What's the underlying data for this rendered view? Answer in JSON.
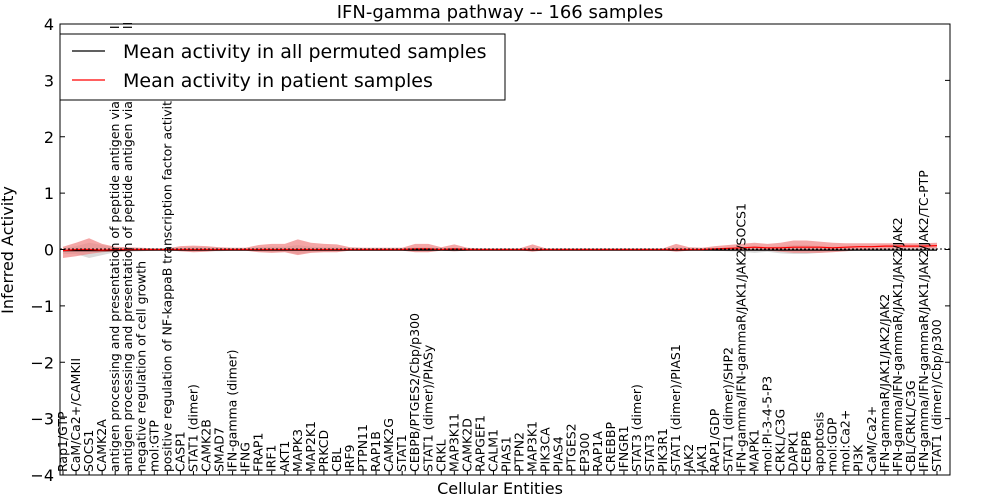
{
  "chart_data": {
    "type": "line",
    "title": "IFN-gamma pathway -- 166 samples",
    "xlabel": "Cellular Entities",
    "ylabel": "Inferred Activity",
    "ylim": [
      -4,
      4
    ],
    "yticks": [
      "4",
      "3",
      "2",
      "1",
      "0",
      "−1",
      "−2",
      "−3",
      "−4"
    ],
    "grid": false,
    "legend_position": "top-left",
    "categories": [
      "Rap1/GTP",
      "CaM/Ca2+/CAMKII",
      "SOCS1",
      "CAMK2A",
      "antigen processing and presentation of peptide antigen via MHC class I",
      "antigen processing and presentation of peptide antigen via MHC class II",
      "negative regulation of cell growth",
      "mol:GTP",
      "positive regulation of NF-kappaB transcription factor activity",
      "CASP1",
      "STAT1 (dimer)",
      "CAMK2B",
      "SMAD7",
      "IFN-gamma (dimer)",
      "IFNG",
      "FRAP1",
      "IRF1",
      "AKT1",
      "MAPK3",
      "MAP2K1",
      "PRKCD",
      "CBL",
      "IRF9",
      "PTPN11",
      "RAP1B",
      "CAMK2G",
      "STAT1",
      "CEBPB/PTGES2/Cbp/p300",
      "STAT1 (dimer)/PIASy",
      "CRKL",
      "MAP3K11",
      "CAMK2D",
      "RAPGEF1",
      "CALM1",
      "PIAS1",
      "PTPN2",
      "MAP3K1",
      "PIK3CA",
      "PIAS4",
      "PTGES2",
      "EP300",
      "RAP1A",
      "CREBBP",
      "IFNGR1",
      "STAT3 (dimer)",
      "STAT3",
      "PIK3R1",
      "STAT1 (dimer)/PIAS1",
      "JAK2",
      "JAK1",
      "RAP1/GDP",
      "STAT1 (dimer)/SHP2",
      "IFN-gamma/IFN-gammaR/JAK1/JAK2/SOCS1",
      "MAPK1",
      "mol:PI-3-4-5-P3",
      "CRKL/C3G",
      "DAPK1",
      "CEBPB",
      "apoptosis",
      "mol:GDP",
      "mol:Ca2+",
      "PI3K",
      "CaM/Ca2+",
      "IFN-gammaR/JAK1/JAK2/JAK2",
      "IFN-gamma/IFN-gammaR/JAK1/JAK2/JAK2",
      "CBL/CRKL/C3G",
      "IFN-gamma/IFN-gammaR/JAK1/JAK2/JAK2/TC-PTP",
      "STAT1 (dimer)/Cbp/p300"
    ],
    "series": [
      {
        "name": "Mean activity in all permuted samples",
        "color": "#000000",
        "values": [
          -0.02,
          -0.02,
          -0.02,
          -0.02,
          -0.02,
          -0.01,
          -0.01,
          -0.01,
          -0.01,
          -0.01,
          -0.01,
          -0.01,
          -0.01,
          -0.01,
          -0.01,
          -0.01,
          -0.01,
          -0.01,
          -0.01,
          -0.01,
          -0.01,
          -0.01,
          -0.01,
          -0.01,
          -0.01,
          -0.01,
          -0.01,
          -0.01,
          -0.01,
          -0.01,
          -0.01,
          -0.01,
          -0.01,
          -0.01,
          -0.01,
          -0.01,
          -0.01,
          -0.01,
          -0.01,
          -0.01,
          -0.01,
          -0.01,
          -0.01,
          -0.01,
          -0.01,
          -0.01,
          -0.01,
          -0.01,
          -0.01,
          -0.01,
          -0.01,
          -0.01,
          -0.01,
          -0.01,
          -0.01,
          -0.01,
          -0.01,
          -0.01,
          -0.01,
          -0.01,
          -0.01,
          -0.01,
          -0.01,
          -0.01,
          -0.01,
          -0.01,
          -0.01,
          -0.01
        ],
        "band_lower": [
          -0.08,
          -0.08,
          -0.15,
          -0.1,
          -0.05,
          -0.04,
          -0.03,
          -0.02,
          -0.02,
          -0.03,
          -0.04,
          -0.03,
          -0.03,
          -0.02,
          -0.02,
          -0.04,
          -0.05,
          -0.04,
          -0.08,
          -0.05,
          -0.04,
          -0.03,
          -0.02,
          -0.02,
          -0.02,
          -0.02,
          -0.02,
          -0.04,
          -0.04,
          -0.02,
          -0.03,
          -0.02,
          -0.01,
          -0.01,
          -0.01,
          -0.01,
          -0.03,
          -0.01,
          -0.01,
          -0.01,
          -0.01,
          -0.01,
          -0.01,
          -0.01,
          -0.01,
          -0.01,
          -0.01,
          -0.03,
          -0.02,
          -0.01,
          -0.02,
          -0.03,
          -0.04,
          -0.06,
          -0.04,
          -0.07,
          -0.08,
          -0.08,
          -0.06,
          -0.04,
          -0.03,
          -0.02,
          -0.02,
          -0.02,
          -0.02,
          -0.02,
          -0.02,
          -0.02
        ],
        "band_upper": [
          0.02,
          0.06,
          0.12,
          0.08,
          0.04,
          0.03,
          0.02,
          0.02,
          0.02,
          0.03,
          0.05,
          0.04,
          0.03,
          0.02,
          0.02,
          0.04,
          0.05,
          0.05,
          0.08,
          0.05,
          0.04,
          0.04,
          0.02,
          0.02,
          0.02,
          0.02,
          0.02,
          0.04,
          0.04,
          0.02,
          0.03,
          0.02,
          0.01,
          0.01,
          0.01,
          0.01,
          0.03,
          0.01,
          0.01,
          0.01,
          0.01,
          0.01,
          0.01,
          0.01,
          0.01,
          0.01,
          0.01,
          0.04,
          0.02,
          0.01,
          0.02,
          0.03,
          0.04,
          0.06,
          0.04,
          0.06,
          0.08,
          0.08,
          0.06,
          0.05,
          0.04,
          0.03,
          0.03,
          0.03,
          0.03,
          0.03,
          0.03,
          0.03
        ]
      },
      {
        "name": "Mean activity in patient samples",
        "color": "#ff0000",
        "band_color": "#f08080",
        "values": [
          -0.02,
          0.0,
          0.0,
          -0.01,
          0.0,
          0.0,
          0.0,
          0.0,
          0.0,
          0.0,
          0.0,
          0.0,
          0.0,
          0.0,
          0.0,
          0.0,
          0.0,
          0.0,
          0.0,
          0.0,
          0.0,
          0.0,
          0.0,
          0.0,
          0.0,
          0.0,
          0.0,
          0.01,
          0.01,
          0.0,
          0.01,
          0.0,
          0.0,
          0.0,
          0.0,
          0.0,
          0.0,
          0.0,
          0.0,
          0.0,
          0.0,
          0.0,
          0.0,
          0.0,
          0.0,
          0.0,
          0.0,
          0.0,
          0.0,
          0.0,
          0.01,
          0.02,
          0.03,
          0.04,
          0.03,
          0.03,
          0.04,
          0.04,
          0.04,
          0.03,
          0.04,
          0.05,
          0.05,
          0.06,
          0.06,
          0.06,
          0.06,
          0.07
        ],
        "band_lower": [
          -0.15,
          -0.12,
          -0.08,
          -0.05,
          -0.03,
          -0.03,
          -0.02,
          -0.02,
          -0.01,
          -0.03,
          -0.05,
          -0.04,
          -0.02,
          -0.02,
          -0.02,
          -0.05,
          -0.06,
          -0.05,
          -0.1,
          -0.06,
          -0.05,
          -0.05,
          -0.02,
          -0.02,
          -0.02,
          -0.02,
          -0.02,
          -0.05,
          -0.05,
          -0.02,
          -0.03,
          -0.02,
          -0.01,
          -0.01,
          -0.01,
          -0.01,
          -0.04,
          -0.01,
          -0.01,
          -0.01,
          -0.01,
          -0.01,
          -0.01,
          -0.01,
          -0.01,
          -0.01,
          -0.01,
          -0.04,
          -0.02,
          -0.01,
          -0.02,
          -0.02,
          -0.02,
          -0.02,
          -0.02,
          -0.04,
          -0.06,
          -0.06,
          -0.06,
          -0.05,
          -0.03,
          -0.01,
          0.0,
          0.01,
          0.02,
          0.02,
          0.02,
          0.02
        ],
        "band_upper": [
          0.05,
          0.12,
          0.2,
          0.1,
          0.05,
          0.04,
          0.03,
          0.02,
          0.02,
          0.06,
          0.07,
          0.06,
          0.04,
          0.03,
          0.03,
          0.08,
          0.1,
          0.1,
          0.18,
          0.12,
          0.1,
          0.09,
          0.04,
          0.03,
          0.03,
          0.03,
          0.03,
          0.1,
          0.1,
          0.04,
          0.09,
          0.03,
          0.02,
          0.02,
          0.02,
          0.02,
          0.09,
          0.02,
          0.02,
          0.02,
          0.02,
          0.02,
          0.02,
          0.02,
          0.02,
          0.02,
          0.02,
          0.1,
          0.04,
          0.03,
          0.06,
          0.08,
          0.1,
          0.12,
          0.1,
          0.12,
          0.16,
          0.16,
          0.14,
          0.12,
          0.11,
          0.11,
          0.11,
          0.11,
          0.11,
          0.11,
          0.11,
          0.12
        ]
      }
    ]
  }
}
